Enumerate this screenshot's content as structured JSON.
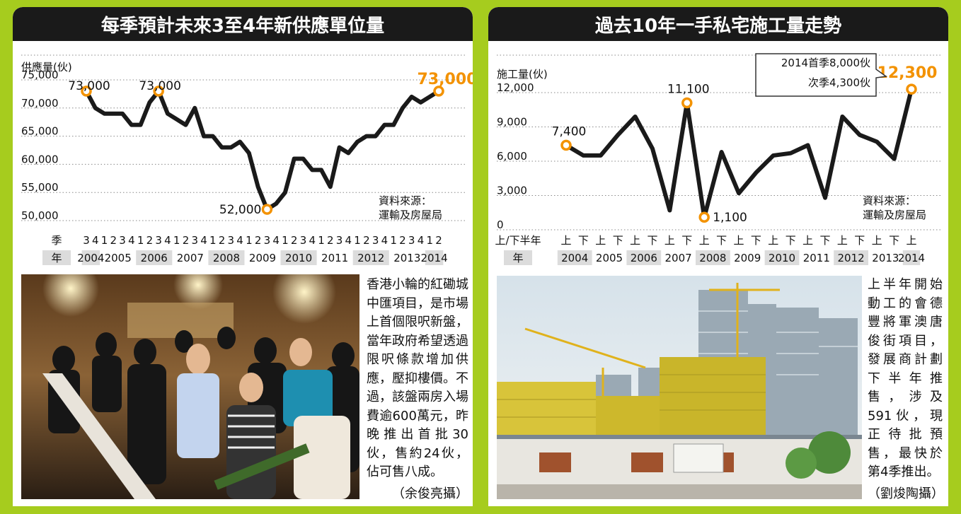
{
  "left": {
    "title": "每季預計未來3至4年新供應單位量",
    "source_lines": [
      "資料來源：",
      "運輸及房屋局"
    ],
    "caption": "香港小輪的紅磡城中匯項目，是市場上首個限呎新盤，當年政府希望透過限呎條款增加供應，壓抑樓價。不過，該盤兩房入場費逾600萬元，昨晚推出首批30伙，售約24伙，佔可售八成。",
    "credit": "（余俊亮攝）"
  },
  "right": {
    "title": "過去10年一手私宅施工量走勢",
    "source_lines": [
      "資料來源：",
      "運輸及房屋局"
    ],
    "callout_lines": [
      "2014首季8,000伙",
      "次季4,300伙"
    ],
    "caption": "上半年開始動工的會德豐將軍澳唐俊街項目，發展商計劃下半年推售，涉及591伙，現正待批預售，最快於第4季推出。",
    "credit": "（劉焌陶攝）"
  },
  "chart_data": [
    {
      "type": "line",
      "title": "每季預計未來3至4年新供應單位量",
      "ylabel": "供應量(伙)",
      "ylim": [
        50000,
        75000
      ],
      "yticks": [
        "50,000",
        "55,000",
        "60,000",
        "65,000",
        "70,000",
        "75,000"
      ],
      "period_row_label": "季",
      "year_row_label": "年",
      "x_periods": [
        "3",
        "4",
        "1",
        "2",
        "3",
        "4",
        "1",
        "2",
        "3",
        "4",
        "1",
        "2",
        "3",
        "4",
        "1",
        "2",
        "3",
        "4",
        "1",
        "2",
        "3",
        "4",
        "1",
        "2",
        "3",
        "4",
        "1",
        "2",
        "3",
        "4",
        "1",
        "2",
        "3",
        "4",
        "1",
        "2",
        "3",
        "4",
        "1",
        "2"
      ],
      "years": [
        "2004",
        "2005",
        "2006",
        "2007",
        "2008",
        "2009",
        "2010",
        "2011",
        "2012",
        "2013",
        "2014"
      ],
      "year_first_index": [
        0,
        2,
        6,
        10,
        14,
        18,
        22,
        26,
        30,
        34,
        38
      ],
      "values": [
        73000,
        70000,
        69000,
        69000,
        69000,
        67000,
        67000,
        71000,
        73000,
        69000,
        68000,
        67000,
        70000,
        65000,
        65000,
        63000,
        63000,
        64000,
        62000,
        56000,
        52000,
        53000,
        55000,
        61000,
        61000,
        59000,
        59000,
        56000,
        63000,
        62000,
        64000,
        65000,
        65000,
        67000,
        67000,
        70000,
        72000,
        71000,
        72000,
        73000
      ],
      "point_labels": [
        {
          "index": 0,
          "text": "73,000"
        },
        {
          "index": 8,
          "text": "73,000"
        },
        {
          "index": 20,
          "text": "52,000"
        },
        {
          "index": 39,
          "text": "73,000",
          "highlight": true
        }
      ],
      "marked_points": [
        0,
        8,
        20,
        39
      ],
      "line_color": "#1a1a1a",
      "marker_color": "#f39200",
      "grid": "dotted horizontal"
    },
    {
      "type": "line",
      "title": "過去10年一手私宅施工量走勢",
      "ylabel": "施工量(伙)",
      "ylim": [
        0,
        12000
      ],
      "yticks": [
        "0",
        "3,000",
        "6,000",
        "9,000",
        "12,000"
      ],
      "period_row_label": "上/下半年",
      "year_row_label": "年",
      "x_periods": [
        "上",
        "下",
        "上",
        "下",
        "上",
        "下",
        "上",
        "下",
        "上",
        "下",
        "上",
        "下",
        "上",
        "下",
        "上",
        "下",
        "上",
        "下",
        "上",
        "下",
        "上"
      ],
      "years": [
        "2004",
        "2005",
        "2006",
        "2007",
        "2008",
        "2009",
        "2010",
        "2011",
        "2012",
        "2013",
        "2014"
      ],
      "year_first_index": [
        0,
        2,
        4,
        6,
        8,
        10,
        12,
        14,
        16,
        18,
        20
      ],
      "values": [
        7400,
        6500,
        6500,
        8300,
        9900,
        7100,
        1700,
        11100,
        1100,
        6800,
        3200,
        5000,
        6500,
        6700,
        7400,
        2800,
        9900,
        8300,
        7700,
        6200,
        12300
      ],
      "point_labels": [
        {
          "index": 0,
          "text": "7,400"
        },
        {
          "index": 7,
          "text": "11,100"
        },
        {
          "index": 8,
          "text": "1,100"
        },
        {
          "index": 20,
          "text": "12,300",
          "highlight": true
        }
      ],
      "marked_points": [
        0,
        7,
        8,
        20
      ],
      "line_color": "#1a1a1a",
      "marker_color": "#f39200",
      "grid": "dotted horizontal"
    }
  ]
}
